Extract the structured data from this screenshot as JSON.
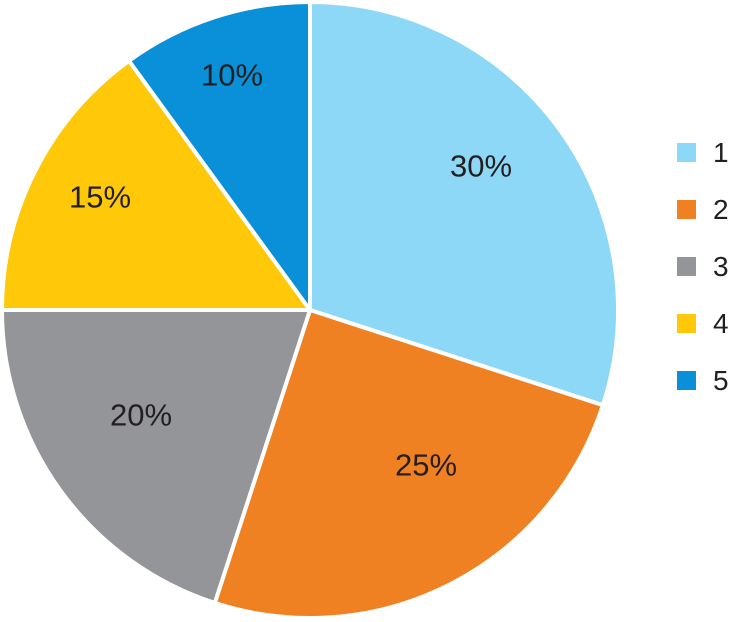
{
  "chart_data": {
    "type": "pie",
    "title": "",
    "categories": [
      "1",
      "2",
      "3",
      "4",
      "5"
    ],
    "values": [
      30,
      25,
      20,
      15,
      10
    ],
    "slice_labels": [
      "30%",
      "25%",
      "20%",
      "15%",
      "10%"
    ],
    "colors": [
      "#8ED8F7",
      "#F08122",
      "#949598",
      "#FFC90A",
      "#0A90D8"
    ],
    "start_angle_deg": 0,
    "direction": "clockwise",
    "slice_border_color": "#FFFFFF",
    "label_color": "#231F20",
    "background_color": "#FFFFFF",
    "legend_position": "right",
    "legend_entries": [
      "1",
      "2",
      "3",
      "4",
      "5"
    ]
  }
}
